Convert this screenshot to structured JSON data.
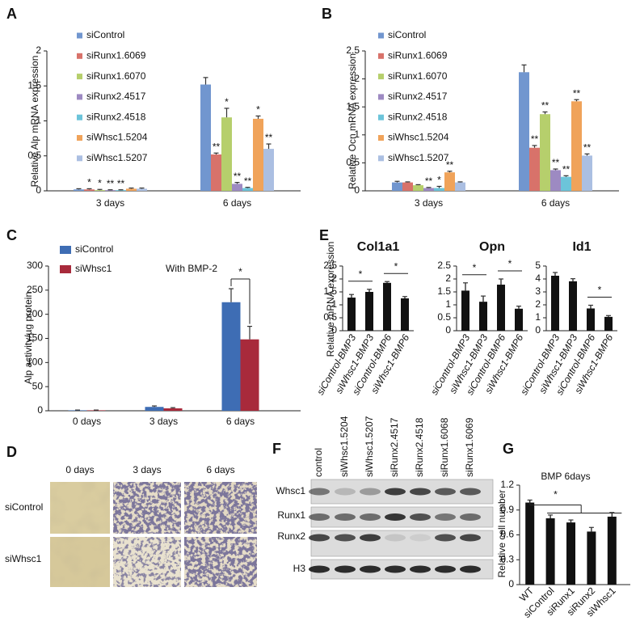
{
  "panel_labels": [
    "A",
    "B",
    "C",
    "D",
    "E",
    "F",
    "G"
  ],
  "chart_data": [
    {
      "type": "bar",
      "ylabel": "Relative Alp mRNA expression",
      "categories": [
        "3 days",
        "6 days"
      ],
      "ylim": [
        0,
        2
      ],
      "yticks": [
        0,
        0.5,
        1,
        1.5,
        2
      ],
      "series": [
        {
          "name": "siControl",
          "color": "#7196cf",
          "values": [
            0.02,
            1.52
          ],
          "errors": [
            0.01,
            0.1
          ],
          "significance": [
            null,
            null
          ]
        },
        {
          "name": "siRunx1.6069",
          "color": "#d8726a",
          "values": [
            0.02,
            0.52
          ],
          "errors": [
            0.01,
            0.02
          ],
          "significance": [
            "*",
            "**"
          ]
        },
        {
          "name": "siRunx1.6070",
          "color": "#b6cf6c",
          "values": [
            0.01,
            1.05
          ],
          "errors": [
            0.01,
            0.13
          ],
          "significance": [
            "*",
            "*"
          ]
        },
        {
          "name": "siRunx2.4517",
          "color": "#9d8ac2",
          "values": [
            0.01,
            0.1
          ],
          "errors": [
            0.005,
            0.02
          ],
          "significance": [
            "**",
            "**"
          ]
        },
        {
          "name": "siRunx2.4518",
          "color": "#6cc4da",
          "values": [
            0.01,
            0.04
          ],
          "errors": [
            0.005,
            0.01
          ],
          "significance": [
            "**",
            "**"
          ]
        },
        {
          "name": "siWhsc1.5204",
          "color": "#f0a35a",
          "values": [
            0.03,
            1.03
          ],
          "errors": [
            0.01,
            0.04
          ],
          "significance": [
            null,
            "*"
          ]
        },
        {
          "name": "siWhsc1.5207",
          "color": "#abbfe2",
          "values": [
            0.03,
            0.6
          ],
          "errors": [
            0.01,
            0.07
          ],
          "significance": [
            null,
            "**"
          ]
        }
      ]
    },
    {
      "type": "bar",
      "ylabel": "Relative Ocn mRNA expression",
      "categories": [
        "3 days",
        "6 days"
      ],
      "ylim": [
        0,
        2.5
      ],
      "yticks": [
        0,
        0.5,
        1,
        1.5,
        2,
        2.5
      ],
      "series": [
        {
          "name": "siControl",
          "color": "#7196cf",
          "values": [
            0.15,
            2.12
          ],
          "errors": [
            0.02,
            0.13
          ],
          "significance": [
            null,
            null
          ]
        },
        {
          "name": "siRunx1.6069",
          "color": "#d8726a",
          "values": [
            0.15,
            0.77
          ],
          "errors": [
            0.01,
            0.04
          ],
          "significance": [
            null,
            "**"
          ]
        },
        {
          "name": "siRunx1.6070",
          "color": "#b6cf6c",
          "values": [
            0.1,
            1.37
          ],
          "errors": [
            0.01,
            0.04
          ],
          "significance": [
            null,
            "**"
          ]
        },
        {
          "name": "siRunx2.4517",
          "color": "#9d8ac2",
          "values": [
            0.05,
            0.37
          ],
          "errors": [
            0.01,
            0.02
          ],
          "significance": [
            "**",
            "**"
          ]
        },
        {
          "name": "siRunx2.4518",
          "color": "#6cc4da",
          "values": [
            0.05,
            0.25
          ],
          "errors": [
            0.03,
            0.02
          ],
          "significance": [
            "*",
            "**"
          ]
        },
        {
          "name": "siWhsc1.5204",
          "color": "#f0a35a",
          "values": [
            0.33,
            1.6
          ],
          "errors": [
            0.02,
            0.03
          ],
          "significance": [
            "**",
            "**"
          ]
        },
        {
          "name": "siWhsc1.5207",
          "color": "#abbfe2",
          "values": [
            0.15,
            0.63
          ],
          "errors": [
            0.01,
            0.03
          ],
          "significance": [
            null,
            "**"
          ]
        }
      ]
    },
    {
      "type": "bar",
      "ylabel": "Alp activity/µg protein",
      "annotation": "With BMP-2",
      "categories": [
        "0 days",
        "3 days",
        "6 days"
      ],
      "ylim": [
        0,
        300
      ],
      "yticks": [
        0,
        50,
        100,
        150,
        200,
        250,
        300
      ],
      "series": [
        {
          "name": "siControl",
          "color": "#3e6db4",
          "values": [
            1,
            8,
            225
          ],
          "errors": [
            0.5,
            2,
            28
          ]
        },
        {
          "name": "siWhsc1",
          "color": "#a82a3b",
          "values": [
            1,
            5,
            148
          ],
          "errors": [
            0.5,
            1.5,
            27
          ]
        }
      ],
      "significance": [
        {
          "label": "*",
          "category": "6 days",
          "between": [
            "siControl",
            "siWhsc1"
          ]
        }
      ]
    },
    {
      "type": "bar",
      "title": "Col1a1",
      "ylabel": "Relative mRNA expression",
      "categories": [
        "siControl-BMP3",
        "siWhsc1-BMP3",
        "siControl-BMP6",
        "siWhsc1-BMP6"
      ],
      "values": [
        1.28,
        1.5,
        1.85,
        1.25
      ],
      "errors": [
        0.12,
        0.1,
        0.05,
        0.07
      ],
      "color": "#111111",
      "ylim": [
        0,
        2.5
      ],
      "yticks": [
        0,
        0.5,
        1,
        1.5,
        2,
        2.5
      ],
      "significance": [
        {
          "label": "*",
          "between": [
            "siControl-BMP3",
            "siWhsc1-BMP3"
          ]
        },
        {
          "label": "*",
          "between": [
            "siControl-BMP6",
            "siWhsc1-BMP6"
          ]
        }
      ]
    },
    {
      "type": "bar",
      "title": "Opn",
      "categories": [
        "siControl-BMP3",
        "siWhsc1-BMP3",
        "siControl-BMP6",
        "siWhsc1-BMP6"
      ],
      "values": [
        1.55,
        1.12,
        1.78,
        0.85
      ],
      "errors": [
        0.3,
        0.22,
        0.22,
        0.1
      ],
      "color": "#111111",
      "ylim": [
        0,
        2.5
      ],
      "yticks": [
        0,
        0.5,
        1,
        1.5,
        2,
        2.5
      ],
      "significance": [
        {
          "label": "*",
          "between": [
            "siControl-BMP3",
            "siWhsc1-BMP3"
          ]
        },
        {
          "label": "*",
          "between": [
            "siControl-BMP6",
            "siWhsc1-BMP6"
          ]
        }
      ]
    },
    {
      "type": "bar",
      "title": "Id1",
      "categories": [
        "siControl-BMP3",
        "siWhsc1-BMP3",
        "siControl-BMP6",
        "siWhsc1-BMP6"
      ],
      "values": [
        4.25,
        3.82,
        1.72,
        1.07
      ],
      "errors": [
        0.25,
        0.2,
        0.25,
        0.1
      ],
      "color": "#111111",
      "ylim": [
        0,
        5
      ],
      "yticks": [
        0,
        1,
        2,
        3,
        4,
        5
      ],
      "significance": [
        {
          "label": "*",
          "between": [
            "siControl-BMP6",
            "siWhsc1-BMP6"
          ]
        }
      ]
    },
    {
      "type": "bar",
      "title": "BMP 6days",
      "ylabel": "Relative cell number",
      "categories": [
        "WT",
        "siControl",
        "siRunx1",
        "siRunx2",
        "siWhsc1"
      ],
      "values": [
        0.99,
        0.8,
        0.75,
        0.64,
        0.82
      ],
      "errors": [
        0.03,
        0.04,
        0.03,
        0.05,
        0.05
      ],
      "color": "#111111",
      "ylim": [
        0,
        1.2
      ],
      "yticks": [
        0,
        0.3,
        0.6,
        0.9,
        1.2
      ],
      "significance": [
        {
          "label": "*",
          "between": [
            "WT",
            "siControl",
            "siRunx1",
            "siRunx2",
            "siWhsc1"
          ]
        }
      ]
    }
  ],
  "micrographs": {
    "columns": [
      "0 days",
      "3 days",
      "6 days"
    ],
    "rows": [
      "siControl",
      "siWhsc1"
    ]
  },
  "western_blot": {
    "lanes": [
      "control",
      "siWhsc1.5204",
      "siWhsc1.5207",
      "siRunx2.4517",
      "siRunx2.4518",
      "siRunx1.6068",
      "siRunx1.6069"
    ],
    "rows": [
      "Whsc1",
      "Runx1",
      "Runx2",
      "H3"
    ]
  }
}
